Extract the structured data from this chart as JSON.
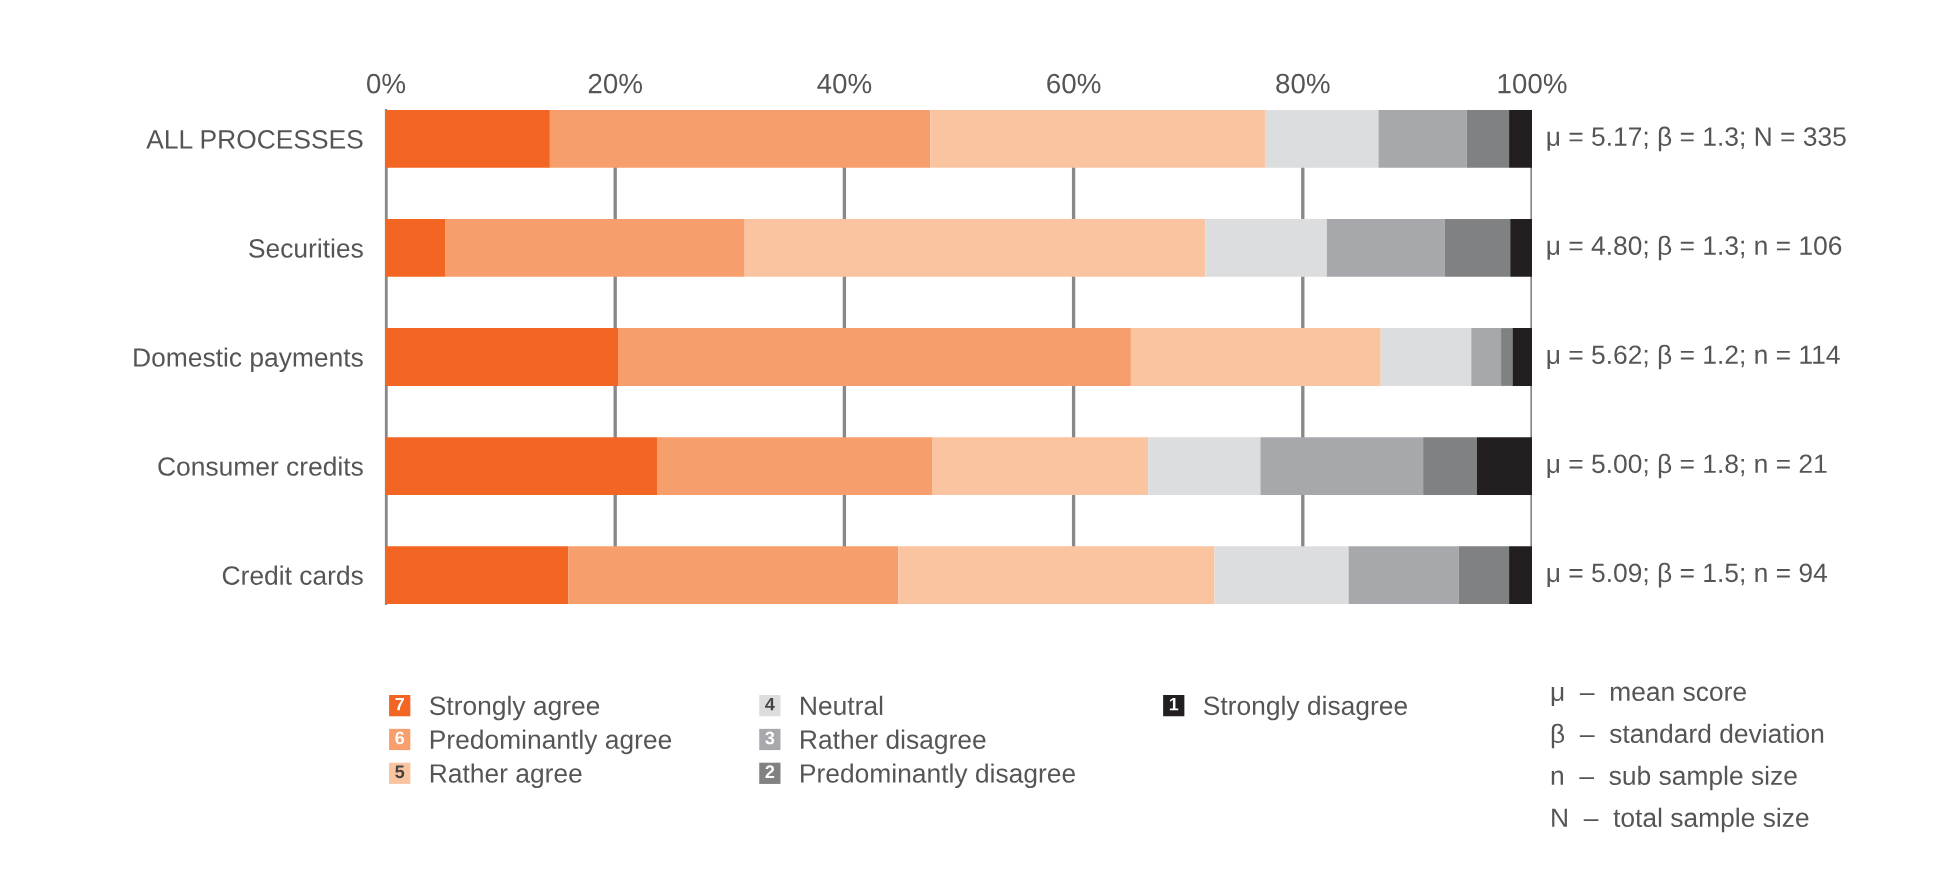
{
  "chart_data": {
    "type": "bar",
    "orientation": "horizontal",
    "stacked": true,
    "categories": [
      "ALL PROCESSES",
      "Securities",
      "Domestic payments",
      "Consumer credits",
      "Credit cards"
    ],
    "series": [
      {
        "name": "Strongly agree",
        "color": "#f26522",
        "values": [
          14.3,
          5.2,
          20.3,
          23.7,
          15.9
        ]
      },
      {
        "name": "Predominantly agree",
        "color": "#f79e6d",
        "values": [
          33.2,
          26.1,
          44.7,
          24.0,
          28.8
        ]
      },
      {
        "name": "Rather agree",
        "color": "#fbc4a0",
        "values": [
          29.2,
          40.2,
          21.8,
          18.8,
          27.6
        ]
      },
      {
        "name": "Neutral",
        "color": "#dcdddf",
        "values": [
          9.9,
          10.6,
          7.9,
          9.8,
          11.7
        ]
      },
      {
        "name": "Rather disagree",
        "color": "#a7a8ab",
        "values": [
          7.7,
          10.3,
          2.6,
          14.2,
          9.6
        ]
      },
      {
        "name": "Predominantly disagree",
        "color": "#808183",
        "values": [
          3.7,
          5.7,
          1.0,
          4.7,
          4.4
        ]
      },
      {
        "name": "Strongly disagree",
        "color": "#231f20",
        "values": [
          2.0,
          1.9,
          1.7,
          4.8,
          2.0
        ]
      }
    ],
    "xlim": [
      0,
      100
    ],
    "xticks": [
      {
        "value": 0,
        "label": "0%"
      },
      {
        "value": 20,
        "label": "20%"
      },
      {
        "value": 40,
        "label": "40%"
      },
      {
        "value": 60,
        "label": "60%"
      },
      {
        "value": 80,
        "label": "80%"
      },
      {
        "value": 100,
        "label": "100%"
      }
    ],
    "grid": "x",
    "legend": "bottom",
    "annotations": [
      "μ = 5.17; β = 1.3; N = 335",
      "μ = 4.80; β = 1.3; n = 106",
      "μ = 5.62; β = 1.2; n = 114",
      "μ = 5.00; β = 1.8; n = 21",
      "μ = 5.09; β = 1.5; n = 94",
      "7",
      "6",
      "5",
      "4",
      "3",
      "2",
      "1",
      "μ  –  mean score",
      "β  –  standard deviation",
      "n  –  sub sample size",
      "N  –  total sample size"
    ]
  }
}
